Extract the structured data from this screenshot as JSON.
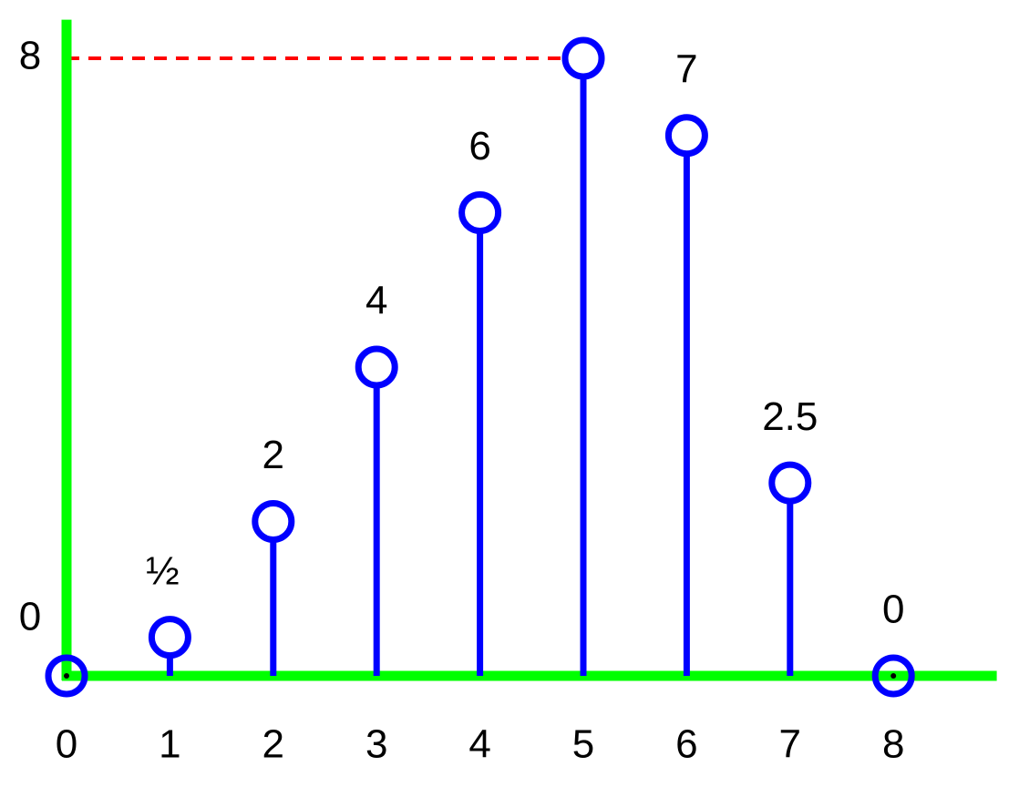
{
  "chart_data": {
    "type": "stem",
    "x": [
      0,
      1,
      2,
      3,
      4,
      5,
      6,
      7,
      8
    ],
    "values": [
      0,
      0.5,
      2,
      4,
      6,
      8,
      7,
      2.5,
      0
    ],
    "value_labels": [
      null,
      "½",
      "2",
      "4",
      "6",
      null,
      "7",
      "2.5",
      "0"
    ],
    "color": "#0000ff",
    "axis_color": "#00ff00",
    "reference_line_color": "#ff0000",
    "xlim": [
      0,
      9
    ],
    "xticks": [
      0,
      1,
      2,
      3,
      4,
      5,
      6,
      7,
      8
    ],
    "ylim": [
      0,
      8.5
    ],
    "yticks": [
      0,
      8
    ]
  }
}
